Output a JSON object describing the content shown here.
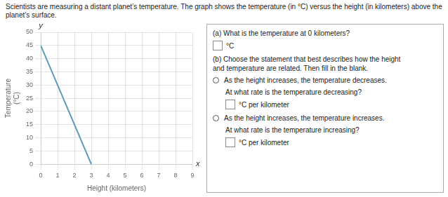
{
  "chart_data": {
    "type": "line",
    "title": "Scientists are measuring a distant planet’s temperature. The graph shows the temperature (in °C) versus the height (in kilometers) above the planet’s surface.",
    "x_label": "Height (kilometers)",
    "y_label": "Temperature\n(°C)",
    "x": [
      0,
      3
    ],
    "values": [
      45,
      0
    ],
    "color": "#5b9ab5",
    "xlim": [
      0,
      9
    ],
    "ylim": [
      0,
      50
    ],
    "xticks": [
      0,
      1,
      2,
      3,
      4,
      5,
      6,
      7,
      8,
      9
    ],
    "yticks": [
      0,
      5,
      10,
      15,
      20,
      25,
      30,
      35,
      40,
      45,
      50
    ],
    "grid": true,
    "annotations": [
      "y",
      "x",
      "(a) What is the temperature at 0 kilometers?",
      "°C",
      "(b) Choose the statement that best describes how the height\nand temperature are related. Then fill in the blank.",
      "As the height increases, the temperature decreases.",
      "At what rate is the temperature decreasing?",
      "°C per kilometer",
      "As the height increases, the temperature increases.",
      "At what rate is the temperature increasing?",
      "°C per kilometer"
    ]
  }
}
